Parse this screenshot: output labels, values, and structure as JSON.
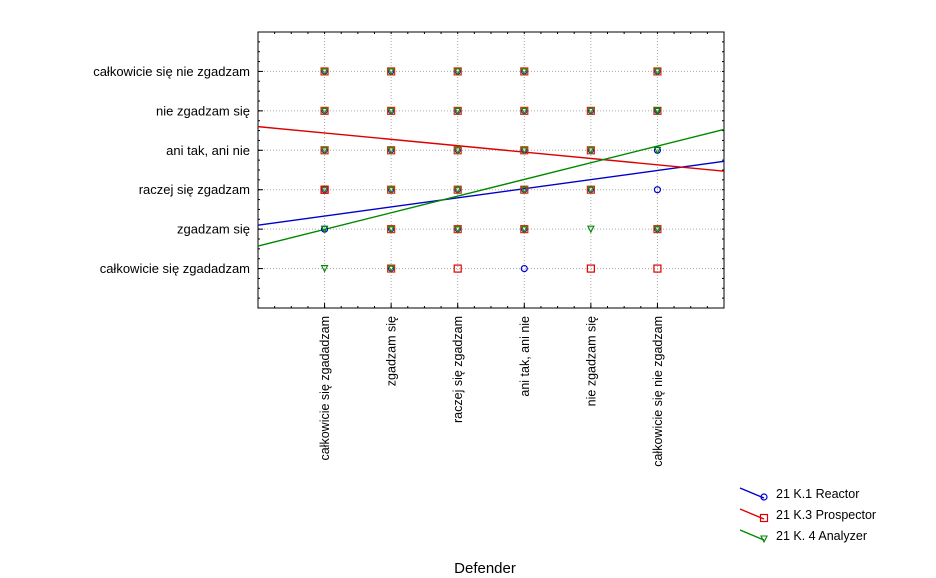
{
  "chart_data": {
    "type": "scatter",
    "xlabel": "Defender",
    "ylabel": "",
    "categories": [
      "całkowicie się zgadadzam",
      "zgadzam się",
      "raczej się zgadzam",
      "ani tak, ani nie",
      "nie zgadzam się",
      "całkowicie się nie zgadzam"
    ],
    "y_categories": [
      "całkowicie się zgadadzam",
      "zgadzam się",
      "raczej się zgadzam",
      "ani tak, ani nie",
      "nie zgadzam się",
      "całkowicie się nie zgadzam"
    ],
    "xlim": [
      0,
      7
    ],
    "ylim": [
      0,
      7
    ],
    "grid": true,
    "legend_position": "bottom-right",
    "series": [
      {
        "name": "21 K.1 Reactor",
        "color": "#0000cc",
        "marker": "circle",
        "points": [
          [
            1,
            2
          ],
          [
            4,
            1
          ],
          [
            6,
            3
          ],
          [
            6,
            4
          ]
        ],
        "fit": {
          "slope": 0.2314,
          "intercept": 2.1
        }
      },
      {
        "name": "21 K.3 Prospector",
        "color": "#dd0000",
        "marker": "square",
        "points": [
          [
            1,
            3
          ],
          [
            3,
            1
          ],
          [
            5,
            1
          ],
          [
            6,
            1
          ]
        ],
        "fit": {
          "slope": -0.1614,
          "intercept": 4.6
        }
      },
      {
        "name": "21 K. 4 Analyzer",
        "color": "#008800",
        "marker": "triangle",
        "points": [
          [
            1,
            1
          ],
          [
            1,
            2
          ],
          [
            5,
            2
          ],
          [
            6,
            4
          ],
          [
            6,
            5
          ]
        ],
        "fit": {
          "slope": 0.4228,
          "intercept": 1.57
        }
      }
    ],
    "overlaid_points": [
      [
        1,
        3
      ],
      [
        1,
        4
      ],
      [
        1,
        5
      ],
      [
        1,
        6
      ],
      [
        2,
        1
      ],
      [
        2,
        2
      ],
      [
        2,
        3
      ],
      [
        2,
        4
      ],
      [
        2,
        5
      ],
      [
        2,
        6
      ],
      [
        3,
        2
      ],
      [
        3,
        3
      ],
      [
        3,
        4
      ],
      [
        3,
        5
      ],
      [
        3,
        6
      ],
      [
        4,
        2
      ],
      [
        4,
        3
      ],
      [
        4,
        4
      ],
      [
        4,
        5
      ],
      [
        4,
        6
      ],
      [
        5,
        3
      ],
      [
        5,
        4
      ],
      [
        5,
        5
      ],
      [
        6,
        2
      ],
      [
        6,
        5
      ],
      [
        6,
        6
      ]
    ]
  }
}
